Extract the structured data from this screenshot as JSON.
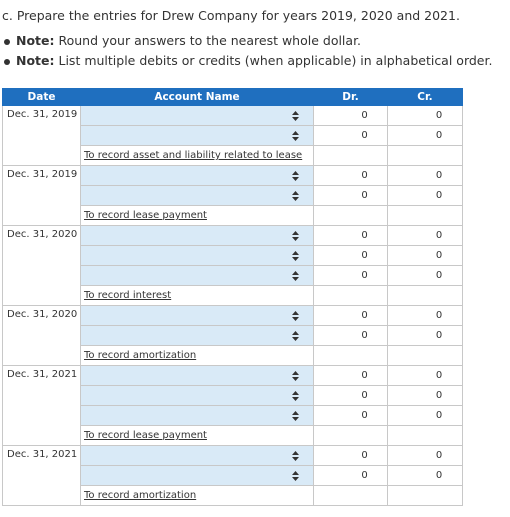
{
  "instructions": {
    "title": "c. Prepare the entries for Drew Company for years 2019, 2020 and 2021.",
    "notes": [
      {
        "label": "Note:",
        "text": " Round your answers to the nearest whole dollar."
      },
      {
        "label": "Note:",
        "text": " List multiple debits or credits (when applicable) in alphabetical order."
      }
    ]
  },
  "table": {
    "headers": {
      "date": "Date",
      "account": "Account Name",
      "dr": "Dr.",
      "cr": "Cr."
    },
    "entries": [
      {
        "date": "Dec. 31, 2019",
        "rows": [
          {
            "dr": "0",
            "cr": "0"
          },
          {
            "dr": "0",
            "cr": "0"
          }
        ],
        "memo": "To record asset and liability related to lease"
      },
      {
        "date": "Dec. 31, 2019",
        "rows": [
          {
            "dr": "0",
            "cr": "0"
          },
          {
            "dr": "0",
            "cr": "0"
          }
        ],
        "memo": "To record lease payment"
      },
      {
        "date": "Dec. 31, 2020",
        "rows": [
          {
            "dr": "0",
            "cr": "0"
          },
          {
            "dr": "0",
            "cr": "0"
          },
          {
            "dr": "0",
            "cr": "0"
          }
        ],
        "memo": "To record interest"
      },
      {
        "date": "Dec. 31, 2020",
        "rows": [
          {
            "dr": "0",
            "cr": "0"
          },
          {
            "dr": "0",
            "cr": "0"
          }
        ],
        "memo": "To record amortization"
      },
      {
        "date": "Dec. 31, 2021",
        "rows": [
          {
            "dr": "0",
            "cr": "0"
          },
          {
            "dr": "0",
            "cr": "0"
          },
          {
            "dr": "0",
            "cr": "0"
          }
        ],
        "memo": "To record lease payment"
      },
      {
        "date": "Dec. 31, 2021",
        "rows": [
          {
            "dr": "0",
            "cr": "0"
          },
          {
            "dr": "0",
            "cr": "0"
          }
        ],
        "memo": "To record amortization"
      }
    ]
  },
  "icons": {
    "account_select": "up-down-arrows-icon"
  },
  "colors": {
    "header_bg": "#1f6fbf",
    "input_bg": "#d9eaf7",
    "border": "#c8c8c8"
  }
}
